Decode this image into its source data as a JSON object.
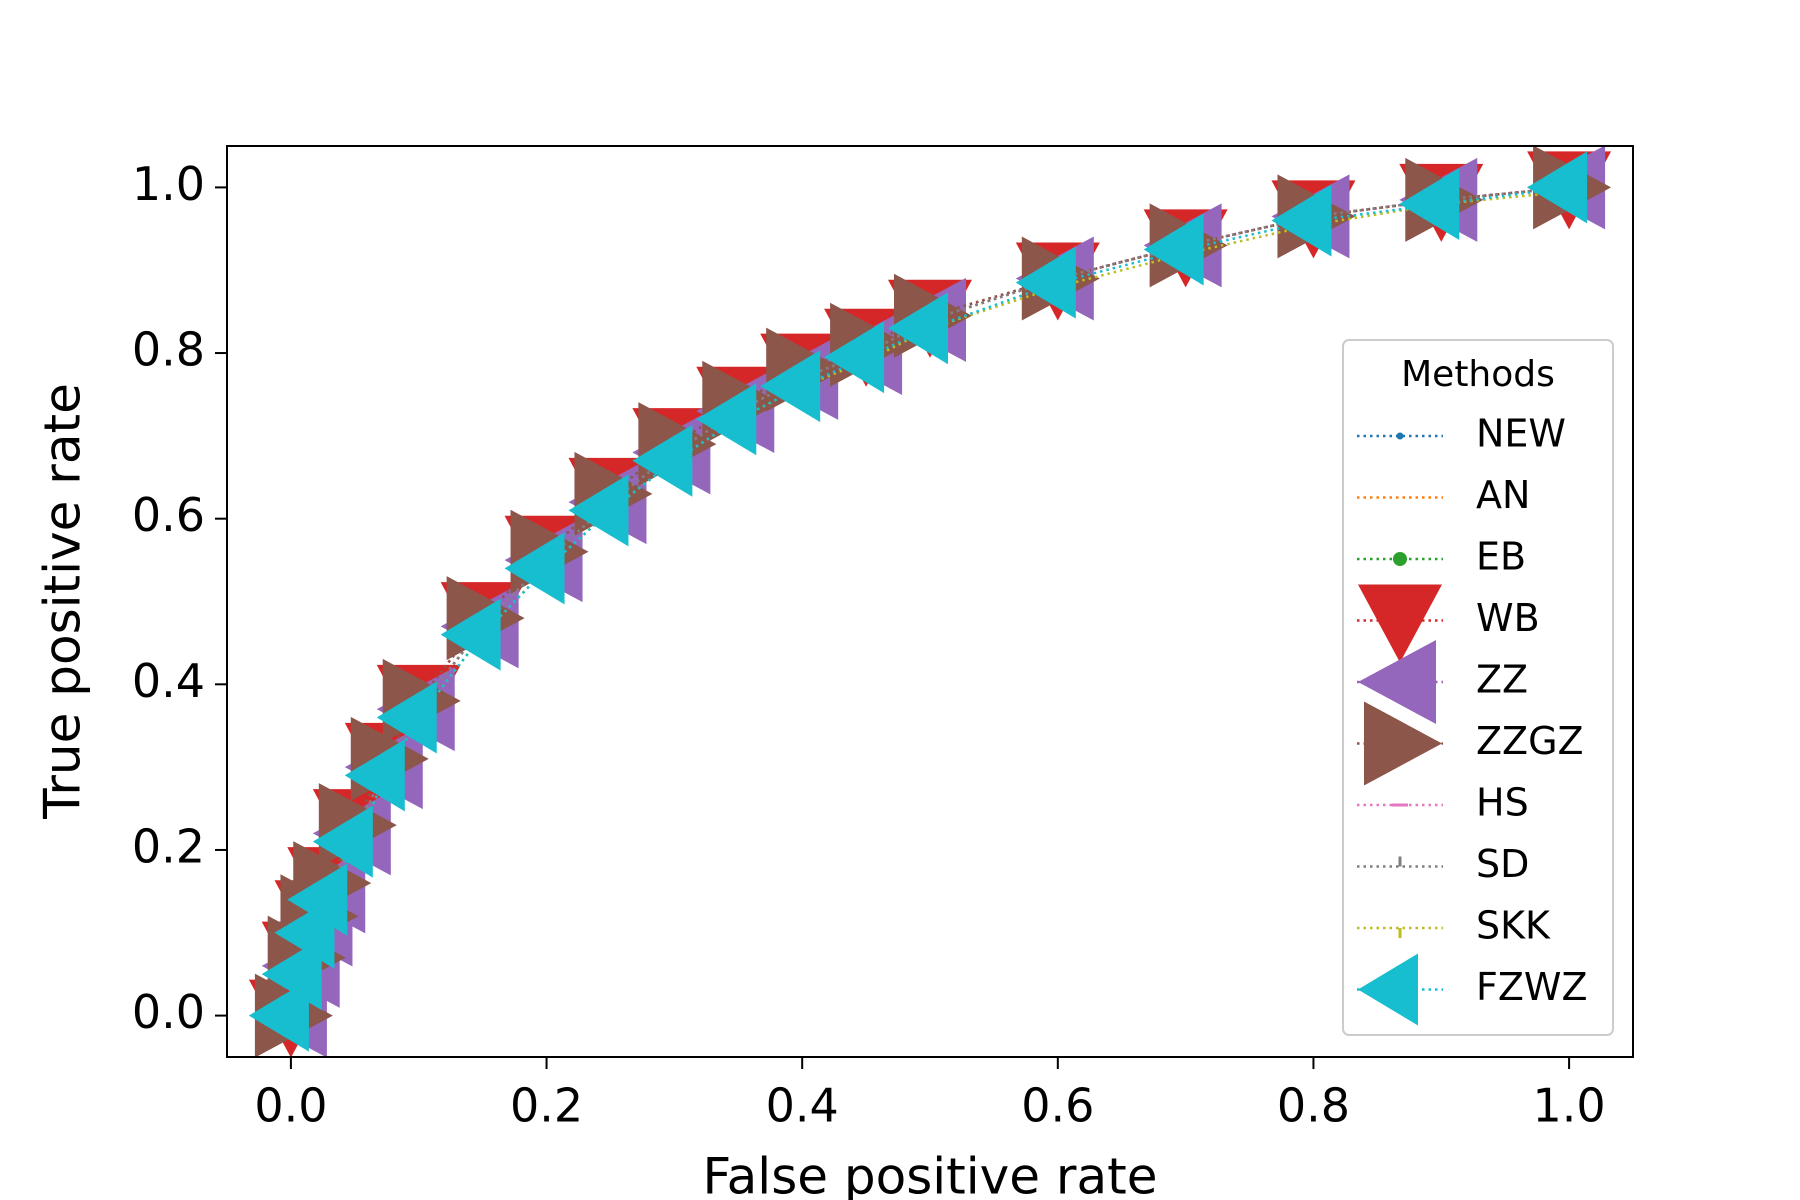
{
  "chart_data": {
    "type": "line",
    "xlabel": "False positive rate",
    "ylabel": "True positive rate",
    "legend_title": "Methods",
    "legend_position": "lower right",
    "linestyle": "dotted",
    "x": [
      0,
      0.01,
      0.02,
      0.03,
      0.05,
      0.075,
      0.1,
      0.15,
      0.2,
      0.25,
      0.3,
      0.35,
      0.4,
      0.45,
      0.5,
      0.6,
      0.7,
      0.8,
      0.9,
      1.0
    ],
    "series": [
      {
        "name": "NEW",
        "color": "#1f77b4",
        "marker": "point",
        "values": [
          0,
          0.06,
          0.11,
          0.15,
          0.22,
          0.3,
          0.37,
          0.47,
          0.55,
          0.62,
          0.68,
          0.73,
          0.77,
          0.8,
          0.84,
          0.89,
          0.93,
          0.965,
          0.985,
          1.0
        ]
      },
      {
        "name": "AN",
        "color": "#ff7f0e",
        "marker": "none",
        "values": [
          0,
          0.06,
          0.11,
          0.15,
          0.22,
          0.3,
          0.37,
          0.47,
          0.55,
          0.62,
          0.68,
          0.73,
          0.77,
          0.8,
          0.84,
          0.89,
          0.93,
          0.965,
          0.985,
          1.0
        ]
      },
      {
        "name": "EB",
        "color": "#2ca02c",
        "marker": "circle",
        "values": [
          0,
          0.06,
          0.11,
          0.15,
          0.22,
          0.3,
          0.37,
          0.47,
          0.55,
          0.62,
          0.68,
          0.73,
          0.77,
          0.8,
          0.84,
          0.89,
          0.93,
          0.965,
          0.985,
          1.0
        ]
      },
      {
        "name": "WB",
        "color": "#d62728",
        "marker": "triangle_down",
        "values": [
          0,
          0.07,
          0.12,
          0.16,
          0.23,
          0.31,
          0.38,
          0.48,
          0.56,
          0.63,
          0.69,
          0.74,
          0.78,
          0.81,
          0.845,
          0.89,
          0.93,
          0.965,
          0.985,
          1.0
        ]
      },
      {
        "name": "ZZ",
        "color": "#9467bd",
        "marker": "triangle_left",
        "values": [
          0,
          0.06,
          0.11,
          0.15,
          0.22,
          0.3,
          0.37,
          0.47,
          0.55,
          0.62,
          0.68,
          0.73,
          0.77,
          0.8,
          0.84,
          0.89,
          0.93,
          0.965,
          0.985,
          1.0
        ]
      },
      {
        "name": "ZZGZ",
        "color": "#8c564b",
        "marker": "triangle_right",
        "values": [
          0,
          0.07,
          0.12,
          0.16,
          0.23,
          0.31,
          0.38,
          0.48,
          0.56,
          0.63,
          0.69,
          0.74,
          0.78,
          0.81,
          0.845,
          0.89,
          0.93,
          0.965,
          0.985,
          1.0
        ]
      },
      {
        "name": "HS",
        "color": "#e377c2",
        "marker": "hline",
        "values": [
          0,
          0.06,
          0.11,
          0.15,
          0.22,
          0.3,
          0.37,
          0.47,
          0.55,
          0.62,
          0.68,
          0.73,
          0.77,
          0.8,
          0.84,
          0.89,
          0.93,
          0.965,
          0.985,
          1.0
        ]
      },
      {
        "name": "SD",
        "color": "#7f7f7f",
        "marker": "tickup",
        "values": [
          0,
          0.06,
          0.11,
          0.15,
          0.22,
          0.3,
          0.37,
          0.47,
          0.55,
          0.62,
          0.68,
          0.73,
          0.77,
          0.8,
          0.84,
          0.89,
          0.93,
          0.965,
          0.985,
          1.0
        ]
      },
      {
        "name": "SKK",
        "color": "#bcbd22",
        "marker": "tickdown",
        "values": [
          0,
          0.05,
          0.1,
          0.14,
          0.21,
          0.29,
          0.36,
          0.46,
          0.54,
          0.61,
          0.67,
          0.72,
          0.76,
          0.79,
          0.83,
          0.88,
          0.92,
          0.955,
          0.98,
          0.995
        ]
      },
      {
        "name": "FZWZ",
        "color": "#17becf",
        "marker": "caret_left",
        "values": [
          0,
          0.05,
          0.1,
          0.14,
          0.21,
          0.29,
          0.36,
          0.46,
          0.54,
          0.61,
          0.67,
          0.72,
          0.76,
          0.795,
          0.83,
          0.885,
          0.925,
          0.96,
          0.98,
          1.0
        ]
      }
    ],
    "xlim": [
      -0.05,
      1.05
    ],
    "xticks": [
      {
        "value": 0,
        "label": "0.0"
      },
      0.2,
      0.4,
      0.6,
      0.8,
      {
        "value": 1,
        "label": "1.0"
      }
    ],
    "ylim": [
      -0.05,
      1.05
    ],
    "yticks": [
      {
        "value": 0,
        "label": "0.0"
      },
      0.2,
      0.4,
      0.6,
      0.8,
      {
        "value": 1,
        "label": "1.0"
      }
    ],
    "grid": false
  }
}
